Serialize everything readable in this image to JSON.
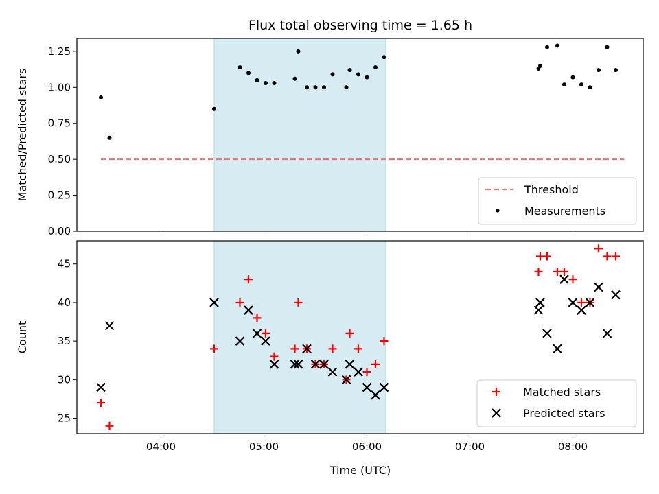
{
  "chart_data": {
    "type": "scatter",
    "title": "Flux total observing time = 1.65 h",
    "xlabel": "Time (UTC)",
    "x_ticks": [
      "04:00",
      "05:00",
      "06:00",
      "07:00",
      "08:00"
    ],
    "x_range": [
      "03:11",
      "08:41"
    ],
    "highlight_span": [
      "04:31",
      "06:11"
    ],
    "highlight_color": "#add8e6",
    "panels": [
      {
        "ylabel": "Matched/Predicted stars",
        "ylim": [
          0.0,
          1.34
        ],
        "y_ticks": [
          "0.00",
          "0.25",
          "0.50",
          "0.75",
          "1.00",
          "1.25"
        ],
        "threshold": {
          "name": "Threshold",
          "value": 0.5,
          "x_from": "03:25",
          "x_to": "08:30",
          "color": "#ff6b6b"
        },
        "legend_position": "lower right",
        "series": [
          {
            "name": "Measurements",
            "marker": "dot",
            "color": "#000000",
            "points": [
              [
                "03:25",
                0.93
              ],
              [
                "03:30",
                0.65
              ],
              [
                "04:31",
                0.85
              ],
              [
                "04:46",
                1.14
              ],
              [
                "04:51",
                1.1
              ],
              [
                "04:56",
                1.05
              ],
              [
                "05:01",
                1.03
              ],
              [
                "05:06",
                1.03
              ],
              [
                "05:18",
                1.06
              ],
              [
                "05:20",
                1.25
              ],
              [
                "05:25",
                1.0
              ],
              [
                "05:30",
                1.0
              ],
              [
                "05:35",
                1.0
              ],
              [
                "05:40",
                1.09
              ],
              [
                "05:48",
                1.0
              ],
              [
                "05:50",
                1.12
              ],
              [
                "05:55",
                1.09
              ],
              [
                "06:00",
                1.07
              ],
              [
                "06:05",
                1.14
              ],
              [
                "06:10",
                1.21
              ],
              [
                "07:40",
                1.13
              ],
              [
                "07:41",
                1.15
              ],
              [
                "07:45",
                1.28
              ],
              [
                "07:51",
                1.29
              ],
              [
                "07:55",
                1.02
              ],
              [
                "08:00",
                1.07
              ],
              [
                "08:05",
                1.02
              ],
              [
                "08:10",
                1.0
              ],
              [
                "08:15",
                1.12
              ],
              [
                "08:20",
                1.28
              ],
              [
                "08:25",
                1.12
              ]
            ]
          }
        ]
      },
      {
        "ylabel": "Count",
        "ylim": [
          23.0,
          48.0
        ],
        "y_ticks": [
          "25",
          "30",
          "35",
          "40",
          "45"
        ],
        "legend_position": "lower right",
        "series": [
          {
            "name": "Matched stars",
            "marker": "plus",
            "color": "#ff0000",
            "points": [
              [
                "03:25",
                27
              ],
              [
                "03:30",
                24
              ],
              [
                "04:31",
                34
              ],
              [
                "04:46",
                40
              ],
              [
                "04:51",
                43
              ],
              [
                "04:56",
                38
              ],
              [
                "05:01",
                36
              ],
              [
                "05:06",
                33
              ],
              [
                "05:18",
                34
              ],
              [
                "05:20",
                40
              ],
              [
                "05:25",
                34
              ],
              [
                "05:30",
                32
              ],
              [
                "05:35",
                32
              ],
              [
                "05:40",
                34
              ],
              [
                "05:48",
                30
              ],
              [
                "05:50",
                36
              ],
              [
                "05:55",
                34
              ],
              [
                "06:00",
                31
              ],
              [
                "06:05",
                32
              ],
              [
                "06:10",
                35
              ],
              [
                "07:40",
                44
              ],
              [
                "07:41",
                46
              ],
              [
                "07:45",
                46
              ],
              [
                "07:51",
                44
              ],
              [
                "07:55",
                44
              ],
              [
                "08:00",
                43
              ],
              [
                "08:05",
                40
              ],
              [
                "08:10",
                40
              ],
              [
                "08:15",
                47
              ],
              [
                "08:20",
                46
              ],
              [
                "08:25",
                46
              ]
            ]
          },
          {
            "name": "Predicted stars",
            "marker": "x",
            "color": "#000000",
            "points": [
              [
                "03:25",
                29
              ],
              [
                "03:30",
                37
              ],
              [
                "04:31",
                40
              ],
              [
                "04:46",
                35
              ],
              [
                "04:51",
                39
              ],
              [
                "04:56",
                36
              ],
              [
                "05:01",
                35
              ],
              [
                "05:06",
                32
              ],
              [
                "05:18",
                32
              ],
              [
                "05:20",
                32
              ],
              [
                "05:25",
                34
              ],
              [
                "05:30",
                32
              ],
              [
                "05:35",
                32
              ],
              [
                "05:40",
                31
              ],
              [
                "05:48",
                30
              ],
              [
                "05:50",
                32
              ],
              [
                "05:55",
                31
              ],
              [
                "06:00",
                29
              ],
              [
                "06:05",
                28
              ],
              [
                "06:10",
                29
              ],
              [
                "07:40",
                39
              ],
              [
                "07:41",
                40
              ],
              [
                "07:45",
                36
              ],
              [
                "07:51",
                34
              ],
              [
                "07:55",
                43
              ],
              [
                "08:00",
                40
              ],
              [
                "08:05",
                39
              ],
              [
                "08:10",
                40
              ],
              [
                "08:15",
                42
              ],
              [
                "08:20",
                36
              ],
              [
                "08:25",
                41
              ]
            ]
          }
        ]
      }
    ]
  }
}
